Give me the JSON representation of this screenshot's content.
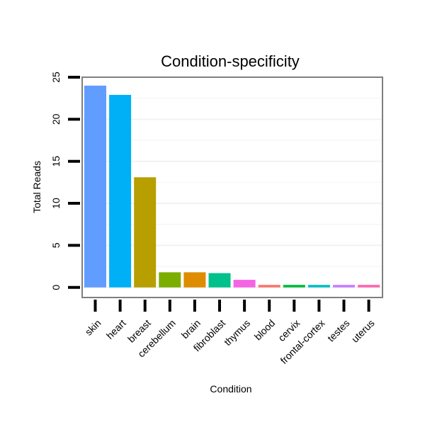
{
  "chart_data": {
    "type": "bar",
    "title": "Condition-specificity",
    "xlabel": "Condition",
    "ylabel": "Total Reads",
    "ylim": [
      -1.2,
      25
    ],
    "yticks": [
      0,
      5,
      10,
      15,
      20,
      25
    ],
    "grid": true,
    "legend": "none",
    "categories": [
      "skin",
      "heart",
      "breast",
      "cerebellum",
      "brain",
      "fibroblast",
      "thymus",
      "blood",
      "cervix",
      "frontal-cortex",
      "testes",
      "uterus"
    ],
    "values": [
      24,
      22.9,
      13.1,
      1.8,
      1.8,
      1.7,
      0.9,
      0.3,
      0.3,
      0.3,
      0.3,
      0.3
    ],
    "colors": [
      "#619CFF",
      "#00B0F6",
      "#B79F00",
      "#7CAE00",
      "#DE8C00",
      "#00C08B",
      "#F564E3",
      "#F8766D",
      "#00BA38",
      "#00BFC4",
      "#C77CFF",
      "#FF64B0"
    ]
  }
}
